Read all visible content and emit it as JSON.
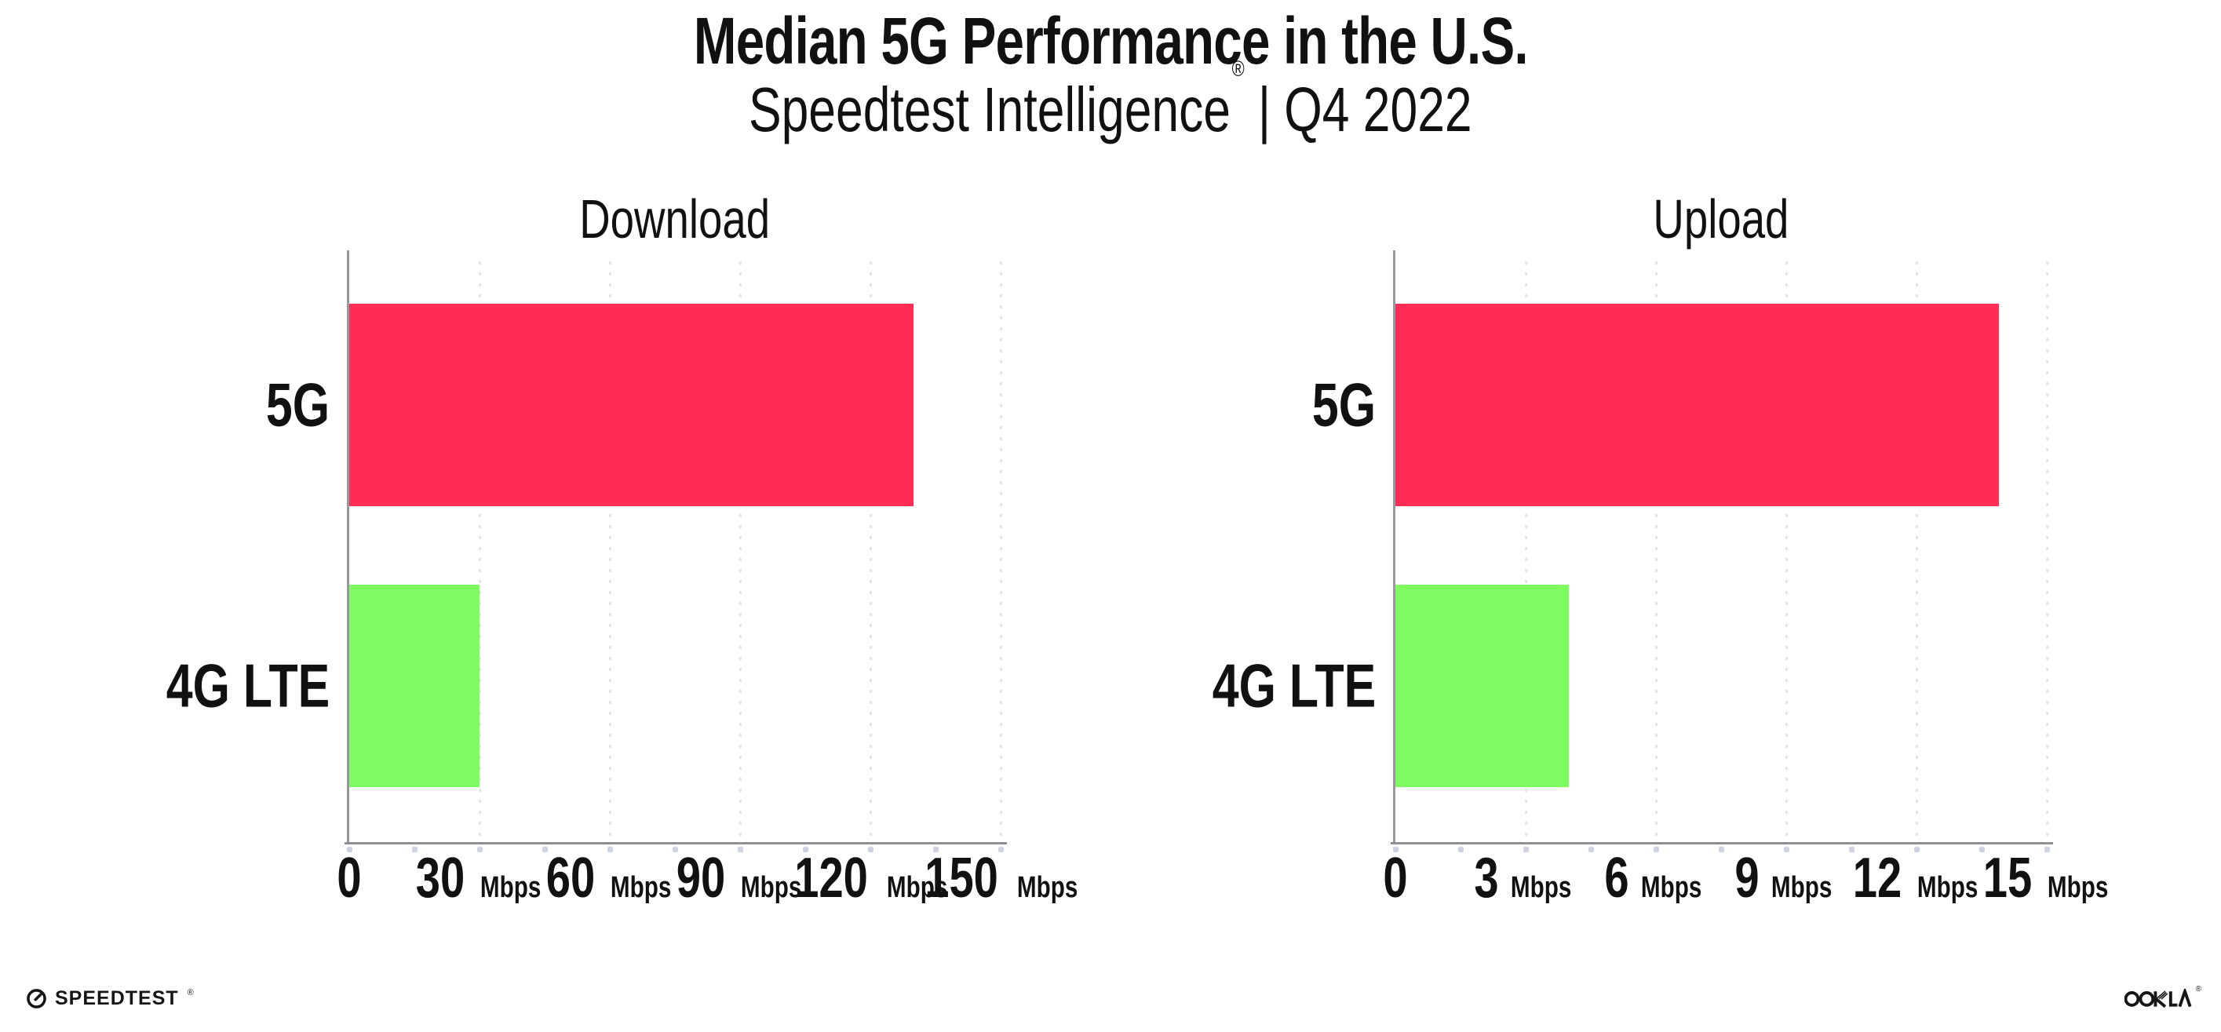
{
  "header": {
    "title": "Median 5G Performance in the U.S.",
    "brand": "Speedtest Intelligence",
    "registered_mark": "®",
    "separator": "|",
    "period": "Q4 2022"
  },
  "chart_data": [
    {
      "type": "bar",
      "orientation": "horizontal",
      "title": "Download",
      "categories": [
        "5G",
        "4G LTE"
      ],
      "values": [
        130,
        30
      ],
      "unit": "Mbps",
      "xlabel": "",
      "ylabel": "",
      "xlim": [
        0,
        150
      ],
      "xticks": [
        0,
        30,
        60,
        90,
        120,
        150
      ],
      "bar_colors": [
        "#FF2D56",
        "#7EFC62"
      ],
      "legend": "none",
      "grid": "vertical-dotted"
    },
    {
      "type": "bar",
      "orientation": "horizontal",
      "title": "Upload",
      "categories": [
        "5G",
        "4G LTE"
      ],
      "values": [
        13.9,
        4
      ],
      "unit": "Mbps",
      "xlabel": "",
      "ylabel": "",
      "xlim": [
        0,
        15
      ],
      "xticks": [
        0,
        3,
        6,
        9,
        12,
        15
      ],
      "bar_colors": [
        "#FF2D56",
        "#7EFC62"
      ],
      "legend": "none",
      "grid": "vertical-dotted"
    }
  ],
  "footer": {
    "speedtest_wordmark": "SPEEDTEST",
    "speedtest_mark": "®",
    "ookla_wordmark": "OOKLA",
    "ookla_mark": "®"
  },
  "colors": {
    "bar_5g": "#FF2D56",
    "bar_4g_lte": "#7EFC62",
    "axis_line": "#8E8E93",
    "gridline_dot": "#E3E3EE",
    "tick_dot": "#CDD3E2",
    "text": "#111111",
    "background": "#FFFFFF"
  }
}
